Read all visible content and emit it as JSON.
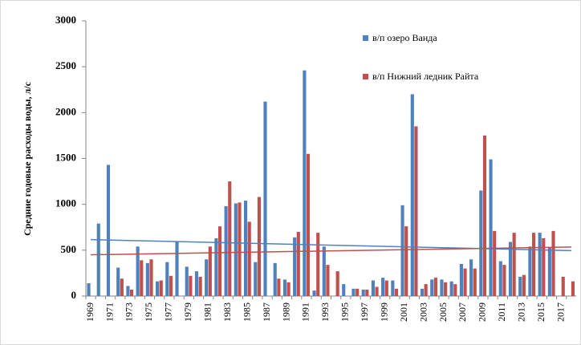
{
  "chart_data": {
    "type": "bar",
    "y_label": "Средние годовые расходы воды, л/с",
    "categories": [
      "1969",
      null,
      "1971",
      null,
      "1973",
      null,
      "1975",
      null,
      "1977",
      null,
      "1979",
      null,
      "1981",
      null,
      "1983",
      null,
      "1985",
      null,
      "1987",
      null,
      "1989",
      null,
      "1991",
      null,
      "1993",
      null,
      "1995",
      null,
      "1997",
      null,
      "1999",
      null,
      "2001",
      null,
      "2003",
      null,
      "2005",
      null,
      "2007",
      null,
      "2009",
      null,
      "2011",
      null,
      "2013",
      null,
      "2015",
      null,
      "2017",
      null
    ],
    "series": [
      {
        "name": "в/п озеро Ванда",
        "color": "#4f81bd",
        "trend": [
          615,
          495
        ],
        "values": [
          140,
          790,
          1430,
          310,
          110,
          540,
          360,
          160,
          370,
          590,
          320,
          270,
          400,
          630,
          980,
          1010,
          1040,
          370,
          2120,
          360,
          180,
          640,
          2460,
          60,
          540,
          0,
          130,
          80,
          70,
          170,
          200,
          170,
          990,
          2200,
          80,
          180,
          180,
          160,
          350,
          400,
          1150,
          1490,
          380,
          590,
          210,
          540,
          690,
          530,
          0,
          0
        ]
      },
      {
        "name": "в/п Нижний ледник Райта",
        "color": "#c0504d",
        "trend": [
          450,
          535
        ],
        "values": [
          0,
          0,
          0,
          190,
          70,
          390,
          400,
          170,
          220,
          0,
          220,
          210,
          540,
          760,
          1250,
          1020,
          810,
          1080,
          0,
          190,
          150,
          700,
          1550,
          690,
          340,
          270,
          0,
          80,
          70,
          100,
          170,
          80,
          760,
          1850,
          130,
          200,
          150,
          130,
          300,
          300,
          1750,
          710,
          340,
          690,
          230,
          690,
          630,
          710,
          210,
          160
        ]
      }
    ],
    "ylim": [
      0,
      3000
    ],
    "yticks": [
      0,
      500,
      1000,
      1500,
      2000,
      2500,
      3000
    ],
    "grid": false
  }
}
